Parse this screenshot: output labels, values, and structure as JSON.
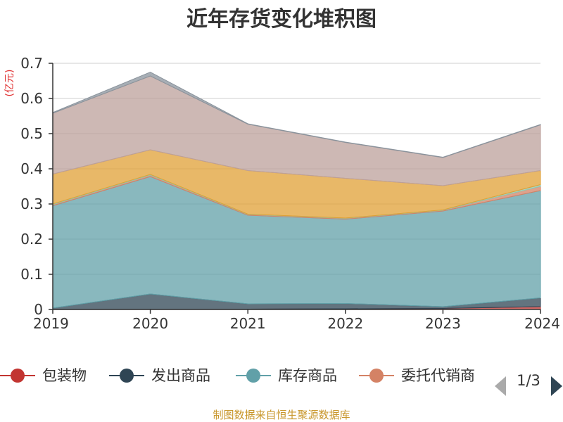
{
  "chart_data": {
    "type": "area",
    "stacked": true,
    "title": "近年存货变化堆积图",
    "unit_label": "(亿元)",
    "x": [
      "2019",
      "2020",
      "2021",
      "2022",
      "2023",
      "2024"
    ],
    "ylim": [
      0,
      0.7
    ],
    "y_ticks": [
      "0",
      "0.1",
      "0.2",
      "0.3",
      "0.4",
      "0.5",
      "0.6",
      "0.7"
    ],
    "grid": true,
    "legend_position": "bottom",
    "series": [
      {
        "name": "包装物",
        "color": "#c23531",
        "values": [
          0.001,
          0.001,
          0.001,
          0.002,
          0.003,
          0.008
        ]
      },
      {
        "name": "发出商品",
        "color": "#2f4554",
        "values": [
          0.003,
          0.043,
          0.015,
          0.015,
          0.005,
          0.025
        ]
      },
      {
        "name": "库存商品",
        "color": "#61a0a8",
        "values": [
          0.291,
          0.334,
          0.252,
          0.24,
          0.272,
          0.305
        ]
      },
      {
        "name": "委托代销商品",
        "color": "#d48265",
        "values": [
          0.003,
          0.004,
          0.002,
          0.002,
          0.002,
          0.012
        ]
      },
      {
        "name": "",
        "color": "#91c7ae",
        "values": [
          0.002,
          0.002,
          0.001,
          0.001,
          0.001,
          0.005
        ]
      },
      {
        "name": "",
        "color": "#e0a035",
        "values": [
          0.085,
          0.07,
          0.124,
          0.113,
          0.069,
          0.04
        ]
      },
      {
        "name": "",
        "color": "#bca09b",
        "values": [
          0.173,
          0.21,
          0.132,
          0.102,
          0.08,
          0.13
        ]
      },
      {
        "name": "",
        "color": "#8a939c",
        "values": [
          0.002,
          0.011,
          0.001,
          0.001,
          0.001,
          0.001
        ]
      }
    ]
  },
  "legend": {
    "items": [
      {
        "label": "包装物",
        "color": "#c23531"
      },
      {
        "label": "发出商品",
        "color": "#2f4554"
      },
      {
        "label": "库存商品",
        "color": "#61a0a8"
      },
      {
        "label": "委托代销商",
        "color": "#d48265"
      }
    ],
    "page_indicator": "1/3",
    "prev_icon": "triangle-left-icon",
    "next_icon": "triangle-right-icon"
  },
  "source_note": "制图数据来自恒生聚源数据库"
}
